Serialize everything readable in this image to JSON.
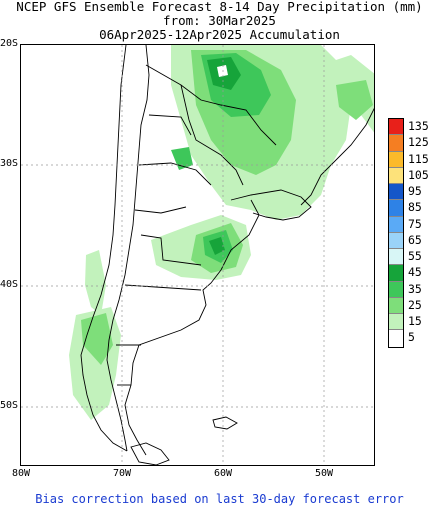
{
  "header": {
    "line1": "NCEP GFS Ensemble Forecast 8-14 Day Precipitation (mm)",
    "line2": "from: 30Mar2025",
    "line3": "06Apr2025-12Apr2025 Accumulation"
  },
  "axes": {
    "lat_labels": [
      "20S",
      "30S",
      "40S",
      "50S"
    ],
    "lon_labels": [
      "80W",
      "70W",
      "60W",
      "50W"
    ]
  },
  "legend": {
    "levels": [
      "135",
      "125",
      "115",
      "105",
      "95",
      "85",
      "75",
      "65",
      "55",
      "45",
      "35",
      "25",
      "15",
      "5"
    ],
    "colors": [
      "#e8201a",
      "#f57e22",
      "#fbba2a",
      "#fde27a",
      "#1456c9",
      "#2e82e6",
      "#5aaaf6",
      "#9ad3f8",
      "#d8f6f6",
      "#16a43a",
      "#3ec75a",
      "#7ede7a",
      "#c2f2bc",
      "#ffffff"
    ]
  },
  "footer": {
    "note": "Bias correction based on last 30-day forecast error"
  }
}
